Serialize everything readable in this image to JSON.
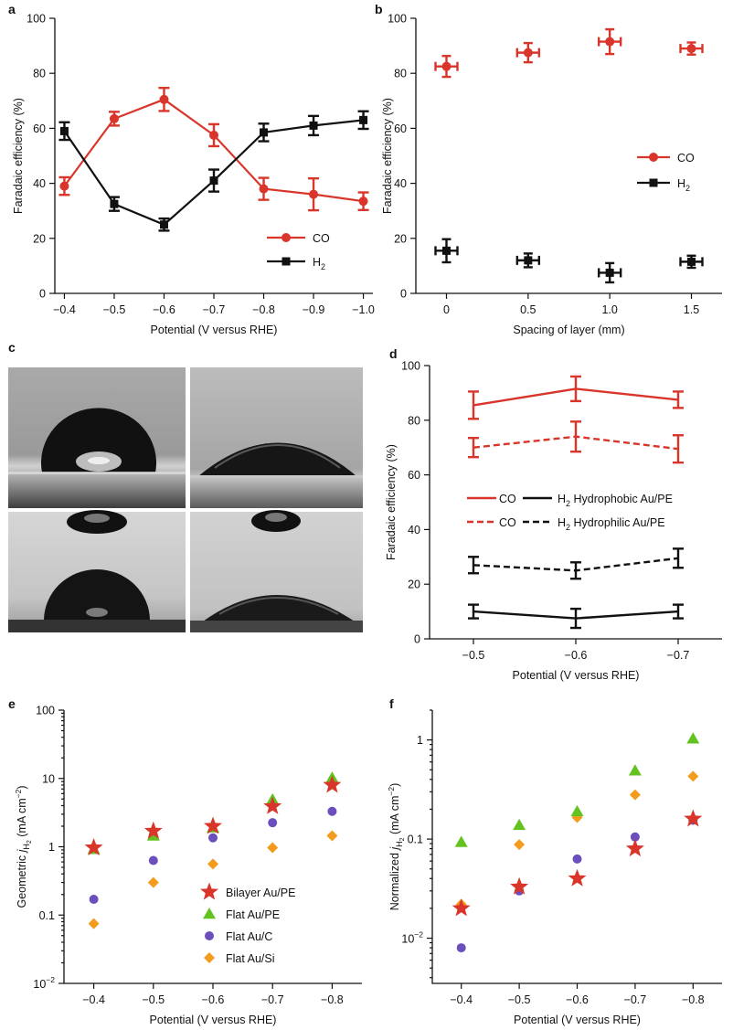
{
  "colors": {
    "red": "#d9352a",
    "black": "#111111",
    "green": "#63c220",
    "purple": "#6b4fbc",
    "orange": "#f29b1c"
  },
  "panel_c": {
    "label": "c",
    "images": [
      {
        "name": "hydrophobic-droplet",
        "description": "water droplet on hydrophobic surface"
      },
      {
        "name": "hydrophilic-droplet",
        "description": "water droplet on hydrophilic surface"
      },
      {
        "name": "hydrophobic-droplet-below",
        "description": "droplet with needle on hydrophobic surface"
      },
      {
        "name": "hydrophilic-droplet-below",
        "description": "droplet with needle on hydrophilic surface"
      }
    ]
  },
  "chart_data": [
    {
      "id": "a",
      "label": "a",
      "type": "line",
      "xlabel": "Potential (V versus RHE)",
      "ylabel": "Faradaic efficiency (%)",
      "x": [
        -0.4,
        -0.5,
        -0.6,
        -0.7,
        -0.8,
        -0.9,
        -1.0
      ],
      "xticks": [
        "−0.4",
        "−0.5",
        "−0.6",
        "−0.7",
        "−0.8",
        "−0.9",
        "−1.0"
      ],
      "ylim": [
        0,
        100
      ],
      "yticks": [
        "0",
        "20",
        "40",
        "60",
        "80",
        "100"
      ],
      "series": [
        {
          "name": "CO",
          "color": "#d9352a",
          "marker": "circle",
          "values": [
            39,
            63.5,
            70.5,
            57.5,
            38,
            36,
            33.5
          ],
          "yerr": [
            3.2,
            2.5,
            4.2,
            4,
            4,
            5.8,
            3.2
          ]
        },
        {
          "name": "H",
          "sub": "2",
          "color": "#111111",
          "marker": "square",
          "values": [
            59,
            32.5,
            25,
            41,
            58.5,
            61,
            63
          ],
          "yerr": [
            3.2,
            2.5,
            2.2,
            4,
            3.2,
            3.5,
            3.2
          ]
        }
      ]
    },
    {
      "id": "b",
      "label": "b",
      "type": "scatter",
      "xlabel": "Spacing of layer (mm)",
      "ylabel": "Faradaic efficiency (%)",
      "x": [
        0,
        0.5,
        1.0,
        1.5
      ],
      "xticks": [
        "0",
        "0.5",
        "1.0",
        "1.5"
      ],
      "ylim": [
        0,
        100
      ],
      "yticks": [
        "0",
        "20",
        "40",
        "60",
        "80",
        "100"
      ],
      "series": [
        {
          "name": "CO",
          "color": "#d9352a",
          "marker": "circle",
          "values": [
            82.5,
            87.5,
            91.5,
            89
          ],
          "yerr": [
            3.8,
            3.5,
            4.5,
            2.2
          ]
        },
        {
          "name": "H",
          "sub": "2",
          "color": "#111111",
          "marker": "square",
          "values": [
            15.5,
            12,
            7.5,
            11.5
          ],
          "yerr": [
            4.2,
            2.5,
            3.5,
            2.2
          ]
        }
      ]
    },
    {
      "id": "d",
      "label": "d",
      "type": "line",
      "xlabel": "Potential (V versus RHE)",
      "ylabel": "Faradaic efficiency (%)",
      "x": [
        -0.5,
        -0.6,
        -0.7
      ],
      "xticks": [
        "−0.5",
        "−0.6",
        "−0.7"
      ],
      "ylim": [
        0,
        100
      ],
      "yticks": [
        "0",
        "20",
        "40",
        "60",
        "80",
        "100"
      ],
      "series": [
        {
          "name": "CO hydrophobic",
          "color": "#d9352a",
          "dash": false,
          "values": [
            85.5,
            91.5,
            87.5
          ],
          "yerr": [
            5,
            4.5,
            3
          ]
        },
        {
          "name": "CO hydrophilic",
          "color": "#d9352a",
          "dash": true,
          "values": [
            70,
            74,
            69.5
          ],
          "yerr": [
            3.5,
            5.5,
            5
          ]
        },
        {
          "name": "H2 hydrophilic",
          "color": "#111111",
          "dash": true,
          "values": [
            27,
            25,
            29.5
          ],
          "yerr": [
            3,
            3,
            3.5
          ]
        },
        {
          "name": "H2 hydrophobic",
          "color": "#111111",
          "dash": false,
          "values": [
            10,
            7.5,
            10
          ],
          "yerr": [
            2.5,
            3.5,
            2.5
          ]
        }
      ],
      "legend": [
        {
          "co": "CO",
          "h": "H",
          "sub": "2",
          "label": "Hydrophobic Au/PE",
          "dash": false
        },
        {
          "co": "CO",
          "h": "H",
          "sub": "2",
          "label": "Hydrophilic Au/PE",
          "dash": true
        }
      ]
    },
    {
      "id": "e",
      "label": "e",
      "type": "scatter",
      "xlabel": "Potential (V versus RHE)",
      "ylabel": {
        "pre": "Geometric ",
        "j": "j",
        "sub": "H",
        "subsub": "2",
        "post": " (mA cm",
        "sup": "−2",
        "end": ")"
      },
      "x": [
        -0.4,
        -0.5,
        -0.6,
        -0.7,
        -0.8
      ],
      "xticks": [
        "−0.4",
        "−0.5",
        "−0.6",
        "−0.7",
        "−0.8"
      ],
      "yscale": "log",
      "ylim": [
        0.01,
        100
      ],
      "yticks": [
        {
          "v": 0.01,
          "base": "10",
          "exp": "−2"
        },
        {
          "v": 0.1,
          "text": "0.1"
        },
        {
          "v": 1,
          "text": "1"
        },
        {
          "v": 10,
          "text": "10"
        },
        {
          "v": 100,
          "text": "100"
        }
      ],
      "series": [
        {
          "name": "Flat Au/Si",
          "color": "#f29b1c",
          "marker": "diamond",
          "values": [
            0.075,
            0.3,
            0.56,
            0.97,
            1.45
          ]
        },
        {
          "name": "Flat Au/C",
          "color": "#6b4fbc",
          "marker": "circle",
          "values": [
            0.17,
            0.63,
            1.35,
            2.25,
            3.3
          ]
        },
        {
          "name": "Flat Au/PE",
          "color": "#63c220",
          "marker": "triangle",
          "values": [
            0.92,
            1.45,
            1.9,
            4.9,
            10.2
          ]
        },
        {
          "name": "Bilayer Au/PE",
          "color": "#d9352a",
          "marker": "star",
          "values": [
            0.97,
            1.7,
            2.0,
            3.9,
            8.0
          ]
        }
      ],
      "legend": [
        "Bilayer Au/PE",
        "Flat Au/PE",
        "Flat Au/C",
        "Flat Au/Si"
      ]
    },
    {
      "id": "f",
      "label": "f",
      "type": "scatter",
      "xlabel": "Potential (V versus RHE)",
      "ylabel": {
        "pre": "Normalized ",
        "j": "j",
        "sub": "H",
        "subsub": "2",
        "post": " (mA cm",
        "sup": "−2",
        "end": ")"
      },
      "x": [
        -0.4,
        -0.5,
        -0.6,
        -0.7,
        -0.8
      ],
      "xticks": [
        "−0.4",
        "−0.5",
        "−0.6",
        "−0.7",
        "−0.8"
      ],
      "yscale": "log",
      "ylim": [
        0.0035,
        2.0
      ],
      "yticks": [
        {
          "v": 0.01,
          "base": "10",
          "exp": "−2"
        },
        {
          "v": 0.1,
          "text": "0.1"
        },
        {
          "v": 1,
          "text": "1"
        }
      ],
      "series": [
        {
          "name": "Flat Au/Si",
          "color": "#f29b1c",
          "marker": "diamond",
          "values": [
            0.022,
            0.088,
            0.165,
            0.28,
            0.43
          ]
        },
        {
          "name": "Flat Au/C",
          "color": "#6b4fbc",
          "marker": "circle",
          "values": [
            0.008,
            0.03,
            0.063,
            0.105,
            0.155
          ]
        },
        {
          "name": "Flat Au/PE",
          "color": "#63c220",
          "marker": "triangle",
          "values": [
            0.093,
            0.138,
            0.19,
            0.49,
            1.03
          ]
        },
        {
          "name": "Bilayer Au/PE",
          "color": "#d9352a",
          "marker": "star",
          "values": [
            0.02,
            0.033,
            0.04,
            0.08,
            0.16
          ]
        }
      ]
    }
  ]
}
